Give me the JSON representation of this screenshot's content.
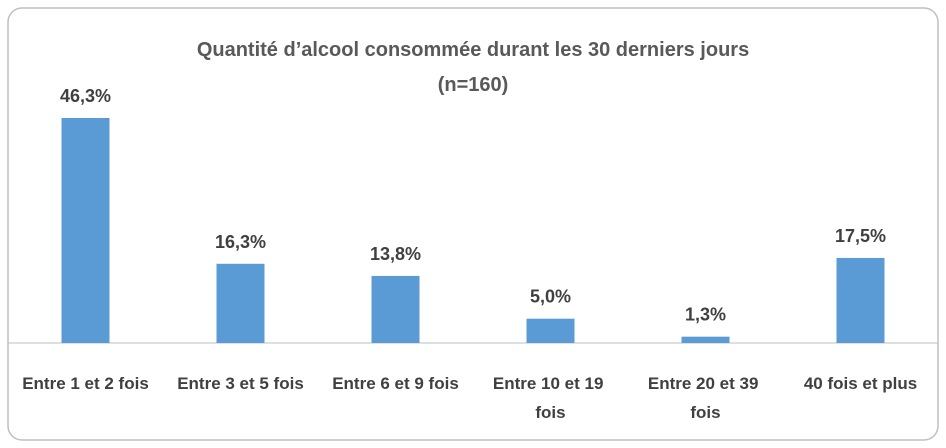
{
  "chart_data": {
    "type": "bar",
    "title": "Quantité d’alcool consommée durant les 30 derniers jours",
    "subtitle": "(n=160)",
    "categories": [
      "Entre 1 et 2 fois",
      "Entre 3 et 5 fois",
      "Entre 6 et 9 fois",
      "Entre 10 et 19 fois",
      "Entre 20 et 39 fois",
      "40 fois et plus"
    ],
    "values": [
      46.3,
      16.3,
      13.8,
      5.0,
      1.3,
      17.5
    ],
    "value_labels": [
      "46,3%",
      "16,3%",
      "13,8%",
      "5,0%",
      "1,3%",
      "17,5%"
    ],
    "color": "#5b9bd5"
  }
}
